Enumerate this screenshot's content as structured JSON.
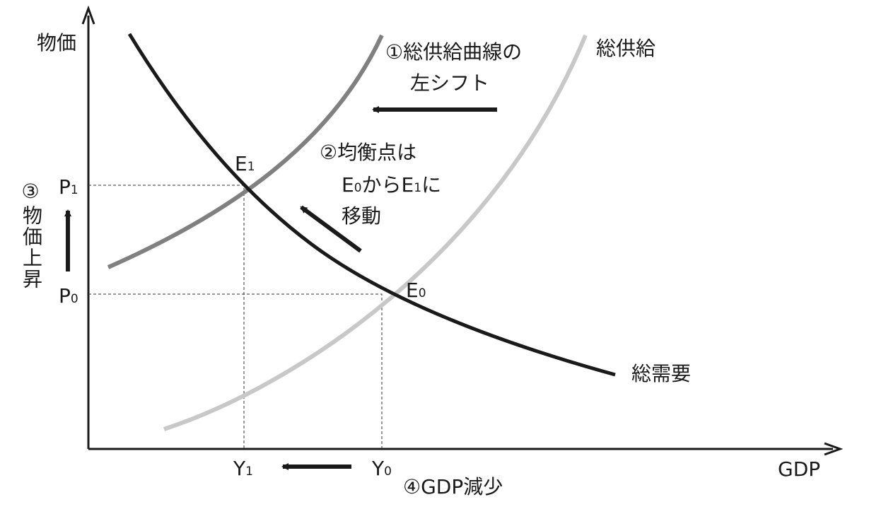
{
  "axes": {
    "y_label": "物価",
    "x_label": "GDP"
  },
  "curves": {
    "supply": "総供給",
    "demand": "総需要"
  },
  "points": {
    "e1": {
      "letter": "E",
      "sub": "1"
    },
    "e0": {
      "letter": "E",
      "sub": "0"
    }
  },
  "price_levels": {
    "p1": {
      "letter": "P",
      "sub": "1"
    },
    "p0": {
      "letter": "P",
      "sub": "0"
    }
  },
  "gdp_levels": {
    "y1": {
      "letter": "Y",
      "sub": "1"
    },
    "y0": {
      "letter": "Y",
      "sub": "0"
    }
  },
  "notes": {
    "shift": {
      "number": "①",
      "lines": [
        "総供給曲線の",
        "左シフト"
      ]
    },
    "equilibrium": {
      "number": "②",
      "lines": [
        [
          {
            "text": "均衡点は"
          }
        ],
        [
          {
            "text": "E"
          },
          {
            "sub": "0"
          },
          {
            "text": "から"
          },
          {
            "text": "E"
          },
          {
            "sub": "1"
          },
          {
            "text": "に"
          }
        ],
        [
          {
            "text": "移動"
          }
        ]
      ]
    },
    "price_rise": {
      "number": "③",
      "text": "物価上昇"
    },
    "gdp_fall": {
      "number": "④",
      "text": "GDP減少"
    }
  }
}
